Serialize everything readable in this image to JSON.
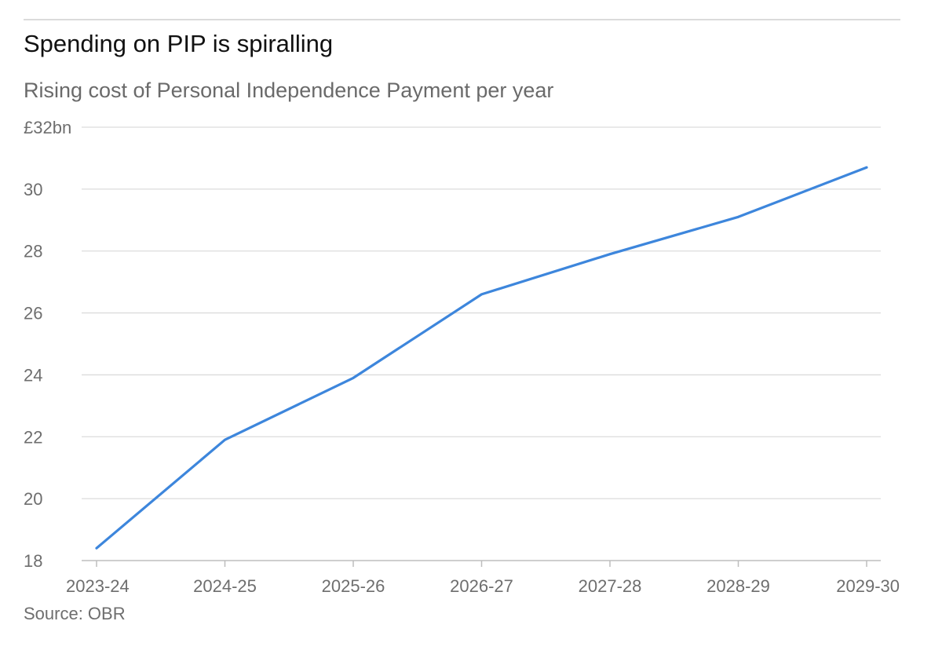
{
  "chart_data": {
    "type": "line",
    "title": "Spending on PIP is spiralling",
    "subtitle": "Rising cost of Personal Independence Payment per year",
    "source": "Source: OBR",
    "categories": [
      "2023-24",
      "2024-25",
      "2025-26",
      "2026-27",
      "2027-28",
      "2028-29",
      "2029-30"
    ],
    "series": [
      {
        "values": [
          18.4,
          21.9,
          23.9,
          26.6,
          27.9,
          29.1,
          30.7
        ],
        "color": "#3d86dc"
      }
    ],
    "yticks": [
      {
        "value": 32,
        "label": "£32bn"
      },
      {
        "value": 30,
        "label": "30"
      },
      {
        "value": 28,
        "label": "28"
      },
      {
        "value": 26,
        "label": "26"
      },
      {
        "value": 24,
        "label": "24"
      },
      {
        "value": 22,
        "label": "22"
      },
      {
        "value": 20,
        "label": "20"
      },
      {
        "value": 18,
        "label": "18"
      }
    ],
    "ylim": [
      18,
      32
    ],
    "grid": true,
    "legend": "none",
    "colors": {
      "rule": "#cfcfcf",
      "grid": "#dcdcdc",
      "axis": "#bdbdbd"
    }
  }
}
